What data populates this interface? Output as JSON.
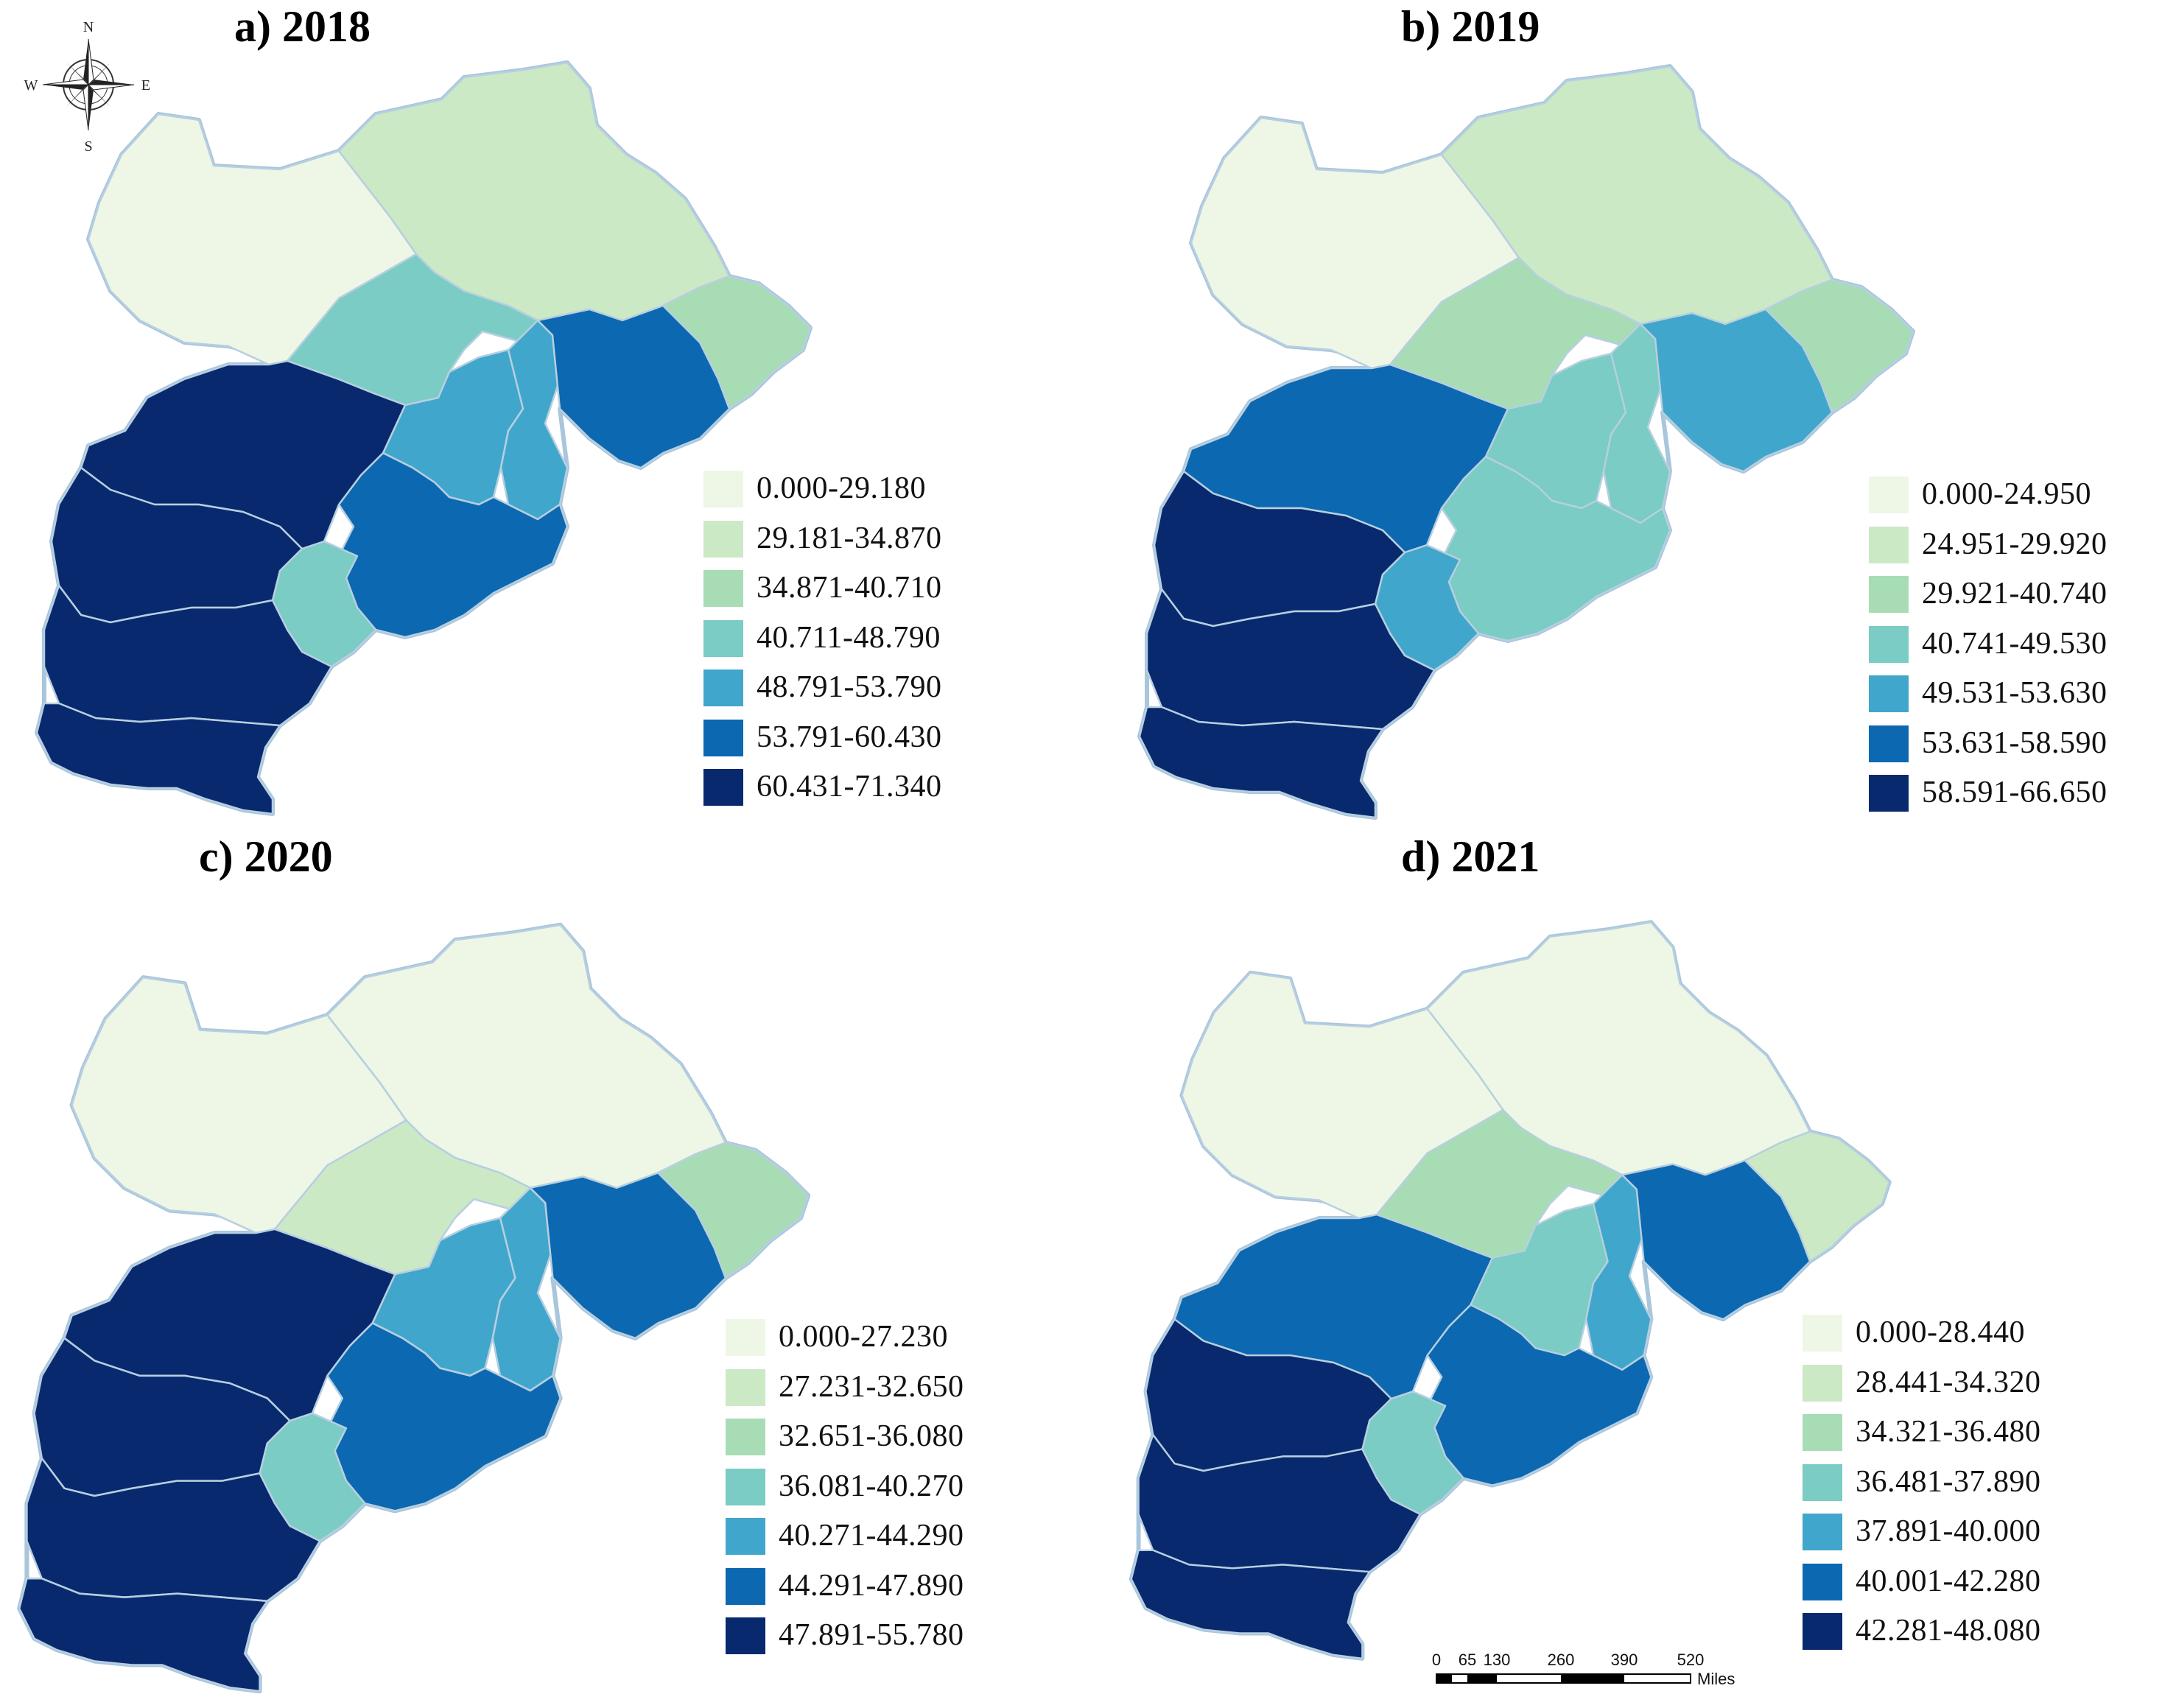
{
  "figure": {
    "panels": [
      {
        "id": "a",
        "title": "a) 2018",
        "legend": [
          "0.000-29.180",
          "29.181-34.870",
          "34.871-40.710",
          "40.711-48.790",
          "48.791-53.790",
          "53.791-60.430",
          "60.431-71.340"
        ],
        "region_classes": [
          0,
          1,
          2,
          3,
          4,
          4,
          5,
          5,
          3,
          6,
          6,
          6,
          6
        ]
      },
      {
        "id": "b",
        "title": "b) 2019",
        "legend": [
          "0.000-24.950",
          "24.951-29.920",
          "29.921-40.740",
          "40.741-49.530",
          "49.531-53.630",
          "53.631-58.590",
          "58.591-66.650"
        ],
        "region_classes": [
          0,
          1,
          2,
          2,
          3,
          3,
          4,
          3,
          4,
          5,
          6,
          6,
          6
        ]
      },
      {
        "id": "c",
        "title": "c) 2020",
        "legend": [
          "0.000-27.230",
          "27.231-32.650",
          "32.651-36.080",
          "36.081-40.270",
          "40.271-44.290",
          "44.291-47.890",
          "47.891-55.780"
        ],
        "region_classes": [
          0,
          0,
          2,
          1,
          4,
          4,
          5,
          5,
          3,
          6,
          6,
          6,
          6
        ]
      },
      {
        "id": "d",
        "title": "d) 2021",
        "legend": [
          "0.000-28.440",
          "28.441-34.320",
          "34.321-36.480",
          "36.481-37.890",
          "37.891-40.000",
          "40.001-42.280",
          "42.281-48.080"
        ],
        "region_classes": [
          0,
          0,
          1,
          2,
          3,
          4,
          5,
          5,
          3,
          5,
          6,
          6,
          6
        ]
      }
    ],
    "class_colors": [
      "#eef7e6",
      "#cce9c5",
      "#a8dcb5",
      "#7accc4",
      "#41a6cc",
      "#0c68b0",
      "#08296e"
    ],
    "compass": {
      "north": "N",
      "south": "S",
      "east": "E",
      "west": "W"
    },
    "scale_bar": {
      "ticks": [
        "0",
        "65",
        "130",
        "260",
        "390",
        "520"
      ],
      "unit": "Miles"
    }
  }
}
